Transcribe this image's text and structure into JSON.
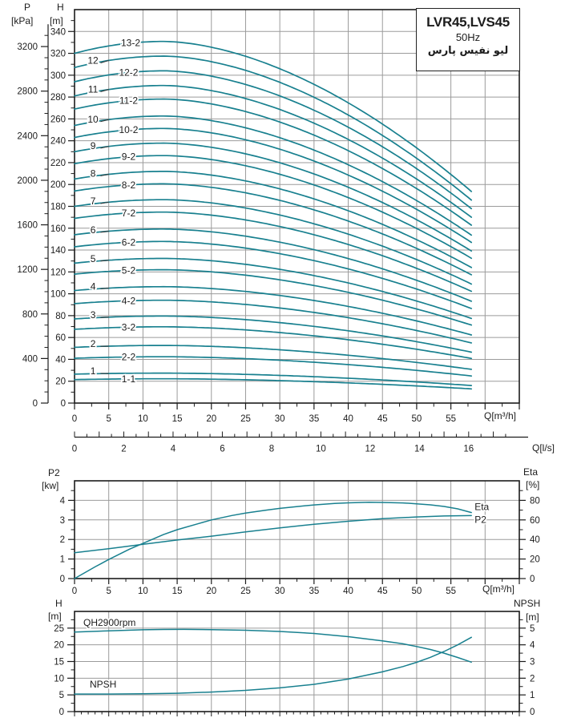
{
  "title_box": {
    "model": "LVR45,LVS45",
    "frequency": "50Hz",
    "brand": "لیو نفیس پارس"
  },
  "colors": {
    "curve": "#18808f",
    "grid": "#9b9b9b",
    "axis": "#1c1c1c",
    "text": "#1c1c1c"
  },
  "headers": {
    "main_p": "P",
    "main_p_unit": "[kPa]",
    "main_h": "H",
    "main_h_unit": "[m]",
    "main_x_unit": "Q[m³/h]",
    "main_x2_unit": "Q[l/s]",
    "mid_left": "P2",
    "mid_left_unit": "[kw]",
    "mid_right": "Eta",
    "mid_right_unit": "[%]",
    "mid_x_unit": "Q[m³/h]",
    "bottom_left": "H",
    "bottom_left_unit": "[m]",
    "bottom_right": "NPSH",
    "bottom_right_unit": "[m]"
  },
  "chart_data": [
    {
      "id": "main-qh",
      "type": "line",
      "title": "LVR45,LVS45 50Hz",
      "xlabel": "Q[m³/h]",
      "x2label": "Q[l/s]",
      "ylabel": "H [m]",
      "ylabel2": "P [kPa]",
      "xlim": [
        0,
        65
      ],
      "ylim": [
        0,
        360
      ],
      "x_ticks": [
        0,
        5,
        10,
        15,
        20,
        25,
        30,
        35,
        40,
        45,
        50,
        55
      ],
      "x2_ticks": [
        0,
        2,
        4,
        6,
        8,
        10,
        12,
        14,
        16
      ],
      "y_ticks": [
        0,
        20,
        40,
        60,
        80,
        100,
        120,
        140,
        160,
        180,
        200,
        220,
        240,
        260,
        280,
        300,
        320,
        340
      ],
      "p_ticks": [
        0,
        400,
        800,
        1200,
        1600,
        2000,
        2400,
        2800,
        3200
      ],
      "grid": "on",
      "curve_shape": {
        "q_peak": 13,
        "q_end": 58,
        "peak_ratio": 1.034,
        "end_ratio": 0.605,
        "droop_exp": 1.75
      },
      "series": [
        {
          "name": "13-2",
          "h0": 320
        },
        {
          "name": "12",
          "h0": 307
        },
        {
          "name": "12-2",
          "h0": 294
        },
        {
          "name": "11",
          "h0": 281
        },
        {
          "name": "11-2",
          "h0": 269
        },
        {
          "name": "10",
          "h0": 254
        },
        {
          "name": "10-2",
          "h0": 243
        },
        {
          "name": "9",
          "h0": 230
        },
        {
          "name": "9-2",
          "h0": 219
        },
        {
          "name": "8",
          "h0": 205
        },
        {
          "name": "8-2",
          "h0": 194
        },
        {
          "name": "7",
          "h0": 180
        },
        {
          "name": "7-2",
          "h0": 169
        },
        {
          "name": "6",
          "h0": 154
        },
        {
          "name": "6-2",
          "h0": 143
        },
        {
          "name": "5",
          "h0": 128
        },
        {
          "name": "5-2",
          "h0": 118
        },
        {
          "name": "4",
          "h0": 103
        },
        {
          "name": "4-2",
          "h0": 91
        },
        {
          "name": "3",
          "h0": 77
        },
        {
          "name": "3-2",
          "h0": 67.5
        },
        {
          "name": "2",
          "h0": 51
        },
        {
          "name": "2-2",
          "h0": 41
        },
        {
          "name": "1",
          "h0": 26.5
        },
        {
          "name": "1-1",
          "h0": 21.5
        }
      ]
    },
    {
      "id": "power-efficiency",
      "type": "line",
      "xlabel": "Q[m³/h]",
      "ylabel_left": "P2 [kw]",
      "ylabel_right": "Eta [%]",
      "xlim": [
        0,
        65
      ],
      "ylim_left": [
        0,
        5
      ],
      "ylim_right": [
        0,
        100
      ],
      "x_ticks": [
        0,
        5,
        10,
        15,
        20,
        25,
        30,
        35,
        40,
        45,
        50,
        55
      ],
      "y_left_ticks": [
        0,
        1,
        2,
        3,
        4
      ],
      "y_right_ticks": [
        0,
        20,
        40,
        60,
        80
      ],
      "grid": "on",
      "series": [
        {
          "name": "Eta",
          "axis": "right",
          "points": [
            [
              0,
              0
            ],
            [
              3,
              12
            ],
            [
              5,
              19.5
            ],
            [
              8,
              30
            ],
            [
              10,
              36
            ],
            [
              13,
              45
            ],
            [
              15,
              50
            ],
            [
              18,
              56
            ],
            [
              20,
              60
            ],
            [
              23,
              64.5
            ],
            [
              25,
              67
            ],
            [
              28,
              70
            ],
            [
              30,
              71.8
            ],
            [
              33,
              74
            ],
            [
              35,
              75.3
            ],
            [
              38,
              76.8
            ],
            [
              40,
              77.5
            ],
            [
              43,
              78
            ],
            [
              45,
              77.9
            ],
            [
              48,
              77.4
            ],
            [
              50,
              76.5
            ],
            [
              52,
              75.4
            ],
            [
              54,
              73.8
            ],
            [
              56,
              71.3
            ],
            [
              58,
              67.5
            ]
          ]
        },
        {
          "name": "P2",
          "axis": "left",
          "points": [
            [
              0,
              1.32
            ],
            [
              5,
              1.53
            ],
            [
              10,
              1.75
            ],
            [
              15,
              1.97
            ],
            [
              20,
              2.17
            ],
            [
              25,
              2.39
            ],
            [
              30,
              2.59
            ],
            [
              35,
              2.78
            ],
            [
              40,
              2.93
            ],
            [
              45,
              3.06
            ],
            [
              50,
              3.15
            ],
            [
              54,
              3.2
            ],
            [
              58,
              3.22
            ]
          ]
        }
      ]
    },
    {
      "id": "qh2900-npsh",
      "type": "line",
      "xlabel": "",
      "ylabel_left": "H [m]",
      "ylabel_right": "NPSH [m]",
      "xlim": [
        0,
        65
      ],
      "ylim_left": [
        0,
        30
      ],
      "ylim_right": [
        0,
        6
      ],
      "y_left_ticks": [
        0,
        5,
        10,
        15,
        20,
        25
      ],
      "y_right_ticks": [
        0,
        1,
        2,
        3,
        4,
        5
      ],
      "grid": "on",
      "series": [
        {
          "name": "QH2900rpm",
          "axis": "left",
          "label_pos": [
            104,
            781
          ],
          "points": [
            [
              0,
              23.8
            ],
            [
              5,
              24.2
            ],
            [
              10,
              24.5
            ],
            [
              13,
              24.6
            ],
            [
              16,
              24.62
            ],
            [
              20,
              24.55
            ],
            [
              25,
              24.35
            ],
            [
              30,
              24.0
            ],
            [
              35,
              23.4
            ],
            [
              40,
              22.45
            ],
            [
              45,
              21.2
            ],
            [
              48,
              20.3
            ],
            [
              50,
              19.5
            ],
            [
              52,
              18.6
            ],
            [
              54,
              17.5
            ],
            [
              56,
              16.2
            ],
            [
              58,
              14.8
            ]
          ]
        },
        {
          "name": "NPSH",
          "axis": "right",
          "label_pos": [
            112,
            858
          ],
          "points": [
            [
              0,
              1.05
            ],
            [
              5,
              1.05
            ],
            [
              10,
              1.07
            ],
            [
              15,
              1.1
            ],
            [
              20,
              1.17
            ],
            [
              25,
              1.27
            ],
            [
              30,
              1.42
            ],
            [
              35,
              1.63
            ],
            [
              40,
              1.95
            ],
            [
              45,
              2.38
            ],
            [
              48,
              2.7
            ],
            [
              50,
              2.95
            ],
            [
              52,
              3.25
            ],
            [
              54,
              3.6
            ],
            [
              56,
              4.0
            ],
            [
              58,
              4.45
            ]
          ]
        }
      ]
    }
  ]
}
